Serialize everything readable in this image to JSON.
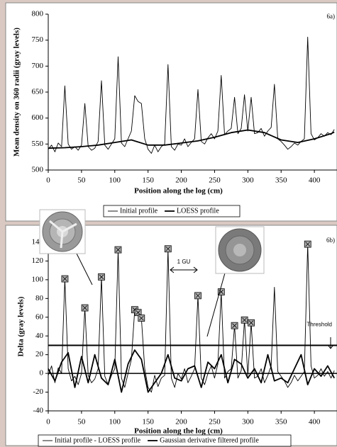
{
  "chart_data": [
    {
      "type": "line",
      "panel_label": "6a)",
      "xlabel": "Position along the log (cm)",
      "ylabel": "Mean density on 360 radii (gray levels)",
      "xlim": [
        0,
        434
      ],
      "xticks": [
        0,
        50,
        100,
        150,
        200,
        250,
        300,
        350,
        400
      ],
      "ylim": [
        500,
        800
      ],
      "yticks": [
        500,
        550,
        600,
        650,
        700,
        750,
        800
      ],
      "series": [
        {
          "name": "Initial profile",
          "color": "#000000",
          "x": [
            0,
            5,
            10,
            15,
            20,
            25,
            30,
            35,
            40,
            45,
            50,
            55,
            60,
            65,
            70,
            75,
            80,
            85,
            90,
            95,
            100,
            105,
            110,
            115,
            120,
            125,
            130,
            135,
            140,
            145,
            150,
            155,
            160,
            165,
            170,
            175,
            180,
            185,
            190,
            195,
            200,
            205,
            210,
            215,
            220,
            225,
            230,
            235,
            240,
            245,
            250,
            255,
            260,
            265,
            270,
            275,
            280,
            285,
            290,
            295,
            300,
            305,
            310,
            315,
            320,
            325,
            330,
            335,
            340,
            345,
            350,
            355,
            360,
            365,
            370,
            375,
            380,
            385,
            390,
            395,
            400,
            405,
            410,
            415,
            420,
            425,
            430
          ],
          "values": [
            540,
            548,
            535,
            552,
            545,
            662,
            550,
            540,
            545,
            538,
            548,
            628,
            545,
            538,
            542,
            555,
            672,
            548,
            540,
            550,
            560,
            718,
            552,
            545,
            560,
            575,
            643,
            632,
            628,
            560,
            540,
            532,
            548,
            535,
            545,
            550,
            703,
            545,
            538,
            550,
            548,
            560,
            545,
            553,
            560,
            655,
            555,
            550,
            562,
            570,
            560,
            575,
            682,
            568,
            575,
            580,
            640,
            570,
            580,
            645,
            575,
            640,
            570,
            572,
            580,
            565,
            575,
            582,
            665,
            560,
            555,
            548,
            540,
            545,
            552,
            548,
            555,
            560,
            756,
            570,
            558,
            562,
            570,
            565,
            572,
            568,
            578
          ]
        },
        {
          "name": "LOESS profile",
          "color": "#000000",
          "x": [
            0,
            25,
            50,
            75,
            100,
            125,
            150,
            175,
            200,
            225,
            250,
            275,
            300,
            325,
            350,
            375,
            400,
            425,
            430
          ],
          "values": [
            542,
            543,
            545,
            548,
            553,
            558,
            548,
            548,
            552,
            556,
            563,
            572,
            577,
            572,
            558,
            553,
            560,
            570,
            573
          ]
        }
      ]
    },
    {
      "type": "line",
      "panel_label": "6b)",
      "xlabel": "Position along the log (cm)",
      "ylabel": "Delta (gray levels)",
      "xlim": [
        0,
        434
      ],
      "xticks": [
        0,
        50,
        100,
        150,
        200,
        250,
        300,
        350,
        400
      ],
      "ylim": [
        -40,
        140
      ],
      "yticks": [
        -40,
        -20,
        0,
        20,
        40,
        60,
        80,
        100,
        120,
        140
      ],
      "threshold": 30,
      "threshold_label": "Threshold",
      "annotation": "1 GU",
      "series": [
        {
          "name": "Initial profile - LOESS profile",
          "color": "#000000",
          "x": [
            0,
            5,
            10,
            15,
            20,
            25,
            30,
            35,
            40,
            45,
            50,
            55,
            60,
            65,
            70,
            75,
            80,
            85,
            90,
            95,
            100,
            105,
            110,
            115,
            120,
            125,
            130,
            135,
            140,
            145,
            150,
            155,
            160,
            165,
            170,
            175,
            180,
            185,
            190,
            195,
            200,
            205,
            210,
            215,
            220,
            225,
            230,
            235,
            240,
            245,
            250,
            255,
            260,
            265,
            270,
            275,
            280,
            285,
            290,
            295,
            300,
            305,
            310,
            315,
            320,
            325,
            330,
            335,
            340,
            345,
            350,
            355,
            360,
            365,
            370,
            375,
            380,
            385,
            390,
            395,
            400,
            405,
            410,
            415,
            420,
            425,
            430
          ],
          "values": [
            -2,
            8,
            -10,
            6,
            0,
            101,
            5,
            -8,
            -3,
            -12,
            0,
            70,
            -2,
            -10,
            -6,
            5,
            103,
            -3,
            -12,
            -2,
            5,
            132,
            -5,
            -15,
            0,
            15,
            68,
            65,
            59,
            5,
            -15,
            -20,
            -2,
            -14,
            -5,
            -2,
            133,
            -5,
            -15,
            0,
            -6,
            5,
            -10,
            -3,
            5,
            83,
            -5,
            -12,
            0,
            8,
            -5,
            10,
            87,
            -5,
            2,
            5,
            51,
            -5,
            3,
            57,
            -2,
            54,
            -5,
            -3,
            5,
            -10,
            -2,
            8,
            92,
            2,
            -3,
            -8,
            -15,
            -10,
            -2,
            -8,
            -3,
            2,
            138,
            8,
            -5,
            -2,
            5,
            -3,
            2,
            -5,
            3
          ]
        },
        {
          "name": "Gaussian derivative filtered profile",
          "color": "#000000",
          "x": [
            0,
            10,
            20,
            30,
            40,
            50,
            60,
            70,
            80,
            90,
            100,
            110,
            120,
            130,
            140,
            150,
            160,
            170,
            180,
            190,
            200,
            210,
            220,
            230,
            240,
            250,
            260,
            270,
            280,
            290,
            300,
            310,
            320,
            330,
            340,
            350,
            360,
            370,
            380,
            390,
            400,
            410,
            420,
            430
          ],
          "values": [
            5,
            -8,
            12,
            22,
            -15,
            18,
            -10,
            20,
            -5,
            -12,
            15,
            -20,
            10,
            25,
            15,
            -20,
            -10,
            0,
            20,
            -5,
            -8,
            5,
            8,
            -15,
            12,
            5,
            20,
            -10,
            15,
            10,
            -5,
            5,
            -10,
            20,
            -8,
            -5,
            -10,
            5,
            20,
            -12,
            5,
            -3,
            8,
            -5
          ]
        }
      ],
      "markers": {
        "x": [
          25,
          55,
          80,
          105,
          130,
          135,
          140,
          180,
          225,
          260,
          280,
          295,
          305,
          390
        ],
        "values": [
          101,
          70,
          103,
          132,
          68,
          65,
          59,
          133,
          83,
          87,
          51,
          57,
          54,
          138
        ]
      }
    }
  ]
}
